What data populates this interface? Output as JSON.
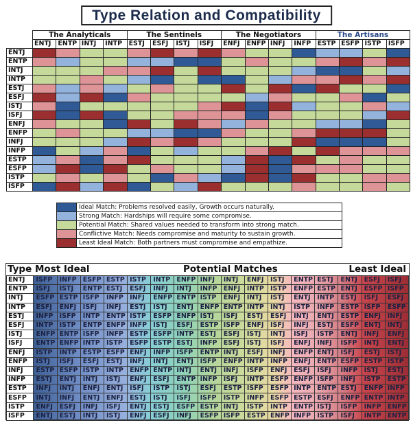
{
  "title": "Type Relation and Compatibility",
  "colors": {
    "D": "#2f5a96",
    "L": "#93b3dc",
    "G": "#c5d99a",
    "P": "#de9497",
    "R": "#9b2f2f"
  },
  "groups": [
    {
      "name": "The Analyticals",
      "color": "#111"
    },
    {
      "name": "The Sentinels",
      "color": "#111"
    },
    {
      "name": "The Negotiators",
      "color": "#111"
    },
    {
      "name": "The Artisans",
      "color": "#2a4a8a"
    }
  ],
  "types": [
    "ENTJ",
    "ENTP",
    "INTJ",
    "INTP",
    "ESTJ",
    "ESFJ",
    "ISTJ",
    "ISFJ",
    "ENFJ",
    "ENFP",
    "INFJ",
    "INFP",
    "ESTP",
    "ESFP",
    "ISTP",
    "ISFP"
  ],
  "matrix": [
    "RPGGPRPRPGGDLLGD",
    "PLGGLLDDGPGGPRPR",
    "GGGPPRGRGGGLDDGL",
    "GGPGLDGDDGLPPRPR",
    "PLPLGPGGRGRDRGGD",
    "RLRDPGGGGLPGGPDG",
    "PDGGGGGPRDRLGGPL",
    "RDRDGGPPPDPGGGLR",
    "PGGDRGRPLPGGLLDG",
    "GPGGLLDDPGGPRRRG",
    "GGGLRPRPGGGRDDDG",
    "DGLPDGLGGPRGRPPP",
    "LPDPRGGGLRDRGPGG",
    "LRDRGPGGLRDPPPGG",
    "GPGPGDPLDRDRGGPP",
    "DRLRDGLRGGGPGGPG"
  ],
  "legend": [
    {
      "key": "D",
      "label": "Ideal Match: Problems resolved easily, Growth occurs naturally."
    },
    {
      "key": "L",
      "label": "Strong Match: Hardships will require some compromise."
    },
    {
      "key": "G",
      "label": "Potential Match: Shared values needed to transform into strong match."
    },
    {
      "key": "P",
      "label": "Conflictive Match: Needs compromise and maturity to sustain growth."
    },
    {
      "key": "R",
      "label": "Least Ideal Match: Both partners must compromise and empathize."
    }
  ],
  "ranking": {
    "type_header": "Type",
    "most": "Most Ideal",
    "potential": "Potential Matches",
    "least": "Least Ideal",
    "rows": [
      [
        "ENTJ",
        "ISFP",
        "INFP",
        "ESFP",
        "ESTP",
        "ISTP",
        "INTP",
        "ENFP",
        "INFJ",
        "INTJ",
        "ENFJ",
        "ISTJ",
        "ENTP",
        "ESTJ",
        "ENTJ",
        "ESFJ",
        "ISFJ"
      ],
      [
        "ENTP",
        "ISFJ",
        "ISTJ",
        "ENTP",
        "ESTJ",
        "ESFJ",
        "INFJ",
        "INTJ",
        "INFP",
        "ENFJ",
        "INTP",
        "ISTP",
        "ENFP",
        "ESTP",
        "ENTJ",
        "ESFP",
        "ISFP"
      ],
      [
        "INTJ",
        "ESFP",
        "ESTP",
        "ISFP",
        "INFP",
        "INFJ",
        "ENFP",
        "ENTP",
        "ISTP",
        "ENFJ",
        "INTJ",
        "ISTJ",
        "ENTJ",
        "INTP",
        "ESTJ",
        "ISFJ",
        "ESFJ"
      ],
      [
        "INTP",
        "ESFJ",
        "ENFJ",
        "ISFJ",
        "INFJ",
        "ESTJ",
        "ISTJ",
        "ENTJ",
        "ENFP",
        "ENTP",
        "INTP",
        "INTJ",
        "ISTP",
        "INFP",
        "ESTP",
        "ISFP",
        "ESFP"
      ],
      [
        "ESTJ",
        "INFP",
        "ISFP",
        "INTP",
        "ENTP",
        "ISTP",
        "ESFP",
        "ENFP",
        "ISTJ",
        "ISFJ",
        "ESTJ",
        "ESFJ",
        "INTJ",
        "ENTJ",
        "ESTP",
        "ENFJ",
        "INFJ"
      ],
      [
        "ESFJ",
        "INTP",
        "ISTP",
        "ENTP",
        "ENFP",
        "INFP",
        "ISTJ",
        "ESFJ",
        "ESTP",
        "ISFP",
        "ENFJ",
        "ISFJ",
        "INFJ",
        "ESTJ",
        "ESFP",
        "ENTJ",
        "INTJ"
      ],
      [
        "ISTJ",
        "ENFP",
        "ENTP",
        "ISFP",
        "INFP",
        "ESTP",
        "ESFP",
        "INTP",
        "ESTJ",
        "ESFJ",
        "ISTJ",
        "INTJ",
        "ISFJ",
        "ISTP",
        "ENTJ",
        "INFJ",
        "ENFJ"
      ],
      [
        "ISFJ",
        "ENTP",
        "ENFP",
        "INTP",
        "ISTP",
        "ESFP",
        "ESTP",
        "ESTJ",
        "INFP",
        "ESFJ",
        "ISTJ",
        "ISFJ",
        "ENFJ",
        "INFJ",
        "ISFP",
        "INTJ",
        "ENTJ"
      ],
      [
        "ENFJ",
        "ISTP",
        "INTP",
        "ESTP",
        "ESFP",
        "ENFJ",
        "INFP",
        "ISFP",
        "ENTP",
        "INTJ",
        "ESFJ",
        "INFJ",
        "ENFP",
        "ENTJ",
        "ISFJ",
        "ESTJ",
        "ISTJ"
      ],
      [
        "ENFP",
        "ISTJ",
        "ISFJ",
        "ESFJ",
        "ESTJ",
        "INFJ",
        "INTJ",
        "ENTJ",
        "ISFP",
        "ENFP",
        "INTP",
        "INFP",
        "ENFJ",
        "ENTP",
        "ESFP",
        "ESTP",
        "ISTP"
      ],
      [
        "INFJ",
        "ESTP",
        "ESFP",
        "ISTP",
        "INTP",
        "ENFP",
        "ENTP",
        "INTJ",
        "ENTJ",
        "INFJ",
        "ISFP",
        "ENFJ",
        "ESFJ",
        "ISFJ",
        "INFP",
        "ISTJ",
        "ESTJ"
      ],
      [
        "INFP",
        "ESTJ",
        "ENTJ",
        "INTJ",
        "ISTJ",
        "ENFJ",
        "ESFJ",
        "ENTP",
        "INFP",
        "ISFJ",
        "INTP",
        "ESFP",
        "ENFP",
        "ISFP",
        "INFJ",
        "ISTP",
        "ESTP"
      ],
      [
        "ESTP",
        "INFJ",
        "INTJ",
        "ENFJ",
        "ENTJ",
        "ISFJ",
        "ISTP",
        "ISTJ",
        "ESFJ",
        "ESTP",
        "ISFP",
        "ESFP",
        "INTP",
        "ENTP",
        "ESTJ",
        "ENFP",
        "INFP"
      ],
      [
        "ESFP",
        "INTJ",
        "INFJ",
        "ENTJ",
        "ENFJ",
        "ESTJ",
        "ISTJ",
        "ISFJ",
        "ISFP",
        "ISTP",
        "INFP",
        "ESFP",
        "ESTP",
        "ESFJ",
        "ENFP",
        "ENTP",
        "INTP"
      ],
      [
        "ISTP",
        "ENFJ",
        "ESFJ",
        "INFJ",
        "ISFJ",
        "ENTJ",
        "ESTJ",
        "ESFP",
        "ESTP",
        "INTJ",
        "ISTP",
        "INTP",
        "ENTP",
        "ISTJ",
        "ISFP",
        "INFP",
        "ENFP"
      ],
      [
        "ISFP",
        "ENTJ",
        "ESTJ",
        "INTJ",
        "ISTJ",
        "ENFJ",
        "ESFJ",
        "INFJ",
        "ESFP",
        "ISFP",
        "ESTP",
        "ENFP",
        "INFP",
        "ISTP",
        "ISFJ",
        "INTP",
        "ENTP"
      ]
    ]
  }
}
